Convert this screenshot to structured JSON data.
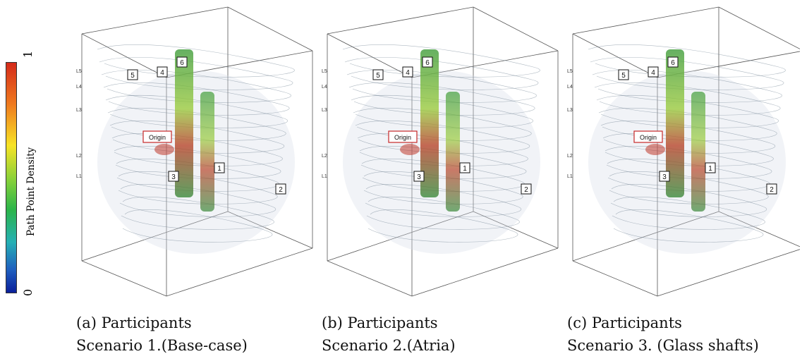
{
  "colorbar": {
    "title": "Path Point Density",
    "max_label": "1",
    "min_label": "0",
    "colors": [
      "#d42a1a",
      "#f7e325",
      "#2bb44a",
      "#25b0b4",
      "#0a1f9a"
    ]
  },
  "levels": [
    "L5",
    "L4",
    "L3",
    "L2",
    "L1"
  ],
  "origin_label": "Origin",
  "markers": [
    "1",
    "2",
    "3",
    "4",
    "5",
    "6"
  ],
  "panels": [
    {
      "caption_line1": "(a) Participants",
      "caption_line2": "Scenario 1.(Base-case)"
    },
    {
      "caption_line1": "(b) Participants",
      "caption_line2": "Scenario 2.(Atria)"
    },
    {
      "caption_line1": "(c) Participants",
      "caption_line2": "Scenario 3. (Glass shafts)"
    }
  ]
}
